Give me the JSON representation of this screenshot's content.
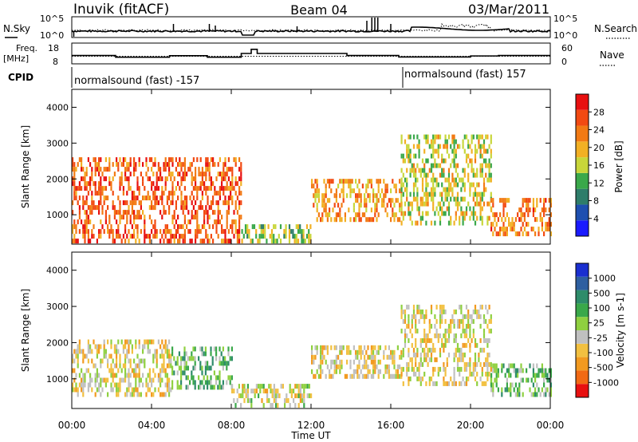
{
  "header": {
    "station": "Inuvik (fitACF)",
    "beam": "Beam 04",
    "date": "03/Mar/2011"
  },
  "noise_panel": {
    "left_label": "N.Sky",
    "right_label": "N.Search",
    "left_ticks": [
      "10^5",
      "10^0"
    ],
    "right_ticks": [
      "10^5",
      "10^0"
    ]
  },
  "freq_panel": {
    "left_label_1": "Freq.",
    "left_label_2": "[MHz]",
    "right_label": "Nave",
    "left_ticks": [
      "18",
      "8"
    ],
    "right_ticks": [
      "60",
      "0"
    ]
  },
  "cpid": {
    "label": "CPID",
    "segments": [
      {
        "text": "normalsound (fast) -157",
        "start_hour": 0
      },
      {
        "text": "normalsound (fast) 157",
        "start_hour": 16.6
      }
    ]
  },
  "power_panel": {
    "ylabel": "Slant Range [km]",
    "yticks": [
      "1000",
      "2000",
      "3000",
      "4000"
    ],
    "colorbar_label": "Power [dB]",
    "colorbar_ticks": [
      "4",
      "8",
      "12",
      "16",
      "20",
      "24",
      "28"
    ],
    "colors": [
      "#1a1aff",
      "#1e4fb0",
      "#2e7d6a",
      "#3aa84a",
      "#c8d63a",
      "#f2b024",
      "#f27a14",
      "#f24a12",
      "#e81010"
    ]
  },
  "velocity_panel": {
    "ylabel": "Slant Range [km]",
    "yticks": [
      "1000",
      "2000",
      "3000",
      "4000"
    ],
    "colorbar_label": "Velocity [m s-1]",
    "colorbar_ticks": [
      "1000",
      "500",
      "100",
      "25",
      "-25",
      "-100",
      "-500",
      "-1000"
    ],
    "colors": [
      "#1a2fd0",
      "#2e5fa0",
      "#2e8c6a",
      "#3aa84a",
      "#8fd040",
      "#c0c0c0",
      "#f2c040",
      "#f29a20",
      "#f26a14",
      "#e81010"
    ]
  },
  "xaxis": {
    "ticks": [
      "00:00",
      "04:00",
      "08:00",
      "12:00",
      "16:00",
      "20:00",
      "00:00"
    ],
    "label": "Time UT"
  },
  "chart_data": [
    {
      "type": "heatmap",
      "title": "Power",
      "xlabel": "Time UT",
      "ylabel": "Slant Range [km]",
      "xlim_hours": [
        0,
        24
      ],
      "ylim_km": [
        180,
        4500
      ],
      "zlabel": "Power [dB]",
      "zlim": [
        0,
        30
      ],
      "coverage": [
        {
          "hours": [
            0,
            8.5
          ],
          "km": [
            200,
            2600
          ],
          "typical_db": 24
        },
        {
          "hours": [
            8.5,
            12
          ],
          "km": [
            200,
            700
          ],
          "typical_db": 14
        },
        {
          "hours": [
            12,
            16.5
          ],
          "km": [
            800,
            2000
          ],
          "typical_db": 20
        },
        {
          "hours": [
            16.5,
            21
          ],
          "km": [
            700,
            3200
          ],
          "typical_db": 16
        },
        {
          "hours": [
            21,
            24
          ],
          "km": [
            400,
            1400
          ],
          "typical_db": 22
        }
      ]
    },
    {
      "type": "heatmap",
      "title": "Velocity",
      "xlabel": "Time UT",
      "ylabel": "Slant Range [km]",
      "xlim_hours": [
        0,
        24
      ],
      "ylim_km": [
        180,
        4500
      ],
      "zlabel": "Velocity [m s-1]",
      "zlim": [
        -1000,
        1000
      ],
      "coverage": [
        {
          "hours": [
            0,
            5
          ],
          "km": [
            500,
            2000
          ],
          "typical_ms": -200
        },
        {
          "hours": [
            5,
            8
          ],
          "km": [
            700,
            1800
          ],
          "typical_ms": 250
        },
        {
          "hours": [
            8,
            12
          ],
          "km": [
            200,
            800
          ],
          "typical_ms": -100
        },
        {
          "hours": [
            12,
            16.5
          ],
          "km": [
            1000,
            1800
          ],
          "typical_ms": -200
        },
        {
          "hours": [
            16.5,
            21
          ],
          "km": [
            800,
            3000
          ],
          "typical_ms": -150
        },
        {
          "hours": [
            21,
            24
          ],
          "km": [
            500,
            1300
          ],
          "typical_ms": 200
        }
      ]
    }
  ]
}
